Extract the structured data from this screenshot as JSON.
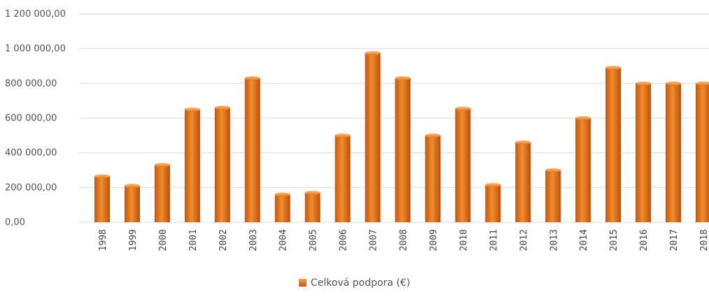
{
  "chart_data": {
    "type": "bar",
    "categories": [
      "1998",
      "1999",
      "2000",
      "2001",
      "2002",
      "2003",
      "2004",
      "2005",
      "2006",
      "2007",
      "2008",
      "2009",
      "2010",
      "2011",
      "2012",
      "2013",
      "2014",
      "2015",
      "2016",
      "2017",
      "2018"
    ],
    "series": [
      {
        "name": "Celková podpora (€)",
        "values": [
          265000,
          210000,
          330000,
          650000,
          660000,
          830000,
          160000,
          170000,
          500000,
          975000,
          830000,
          500000,
          655000,
          215000,
          460000,
          300000,
          600000,
          890000,
          800000,
          800000,
          800000
        ]
      }
    ],
    "yticks": [
      "0,00",
      "200 000,00",
      "400 000,00",
      "600 000,00",
      "800 000,00",
      "1 000 000,00",
      "1 200 000,00"
    ],
    "ylim": [
      0,
      1200000
    ],
    "title": "",
    "xlabel": "",
    "ylabel": "",
    "legend_position": "bottom",
    "grid": true,
    "colors": {
      "bar_top": "#f7a54f",
      "bar_mid": "#e8761e",
      "bar_bottom": "#b84f0e",
      "grid": "#d9d9d9"
    }
  }
}
